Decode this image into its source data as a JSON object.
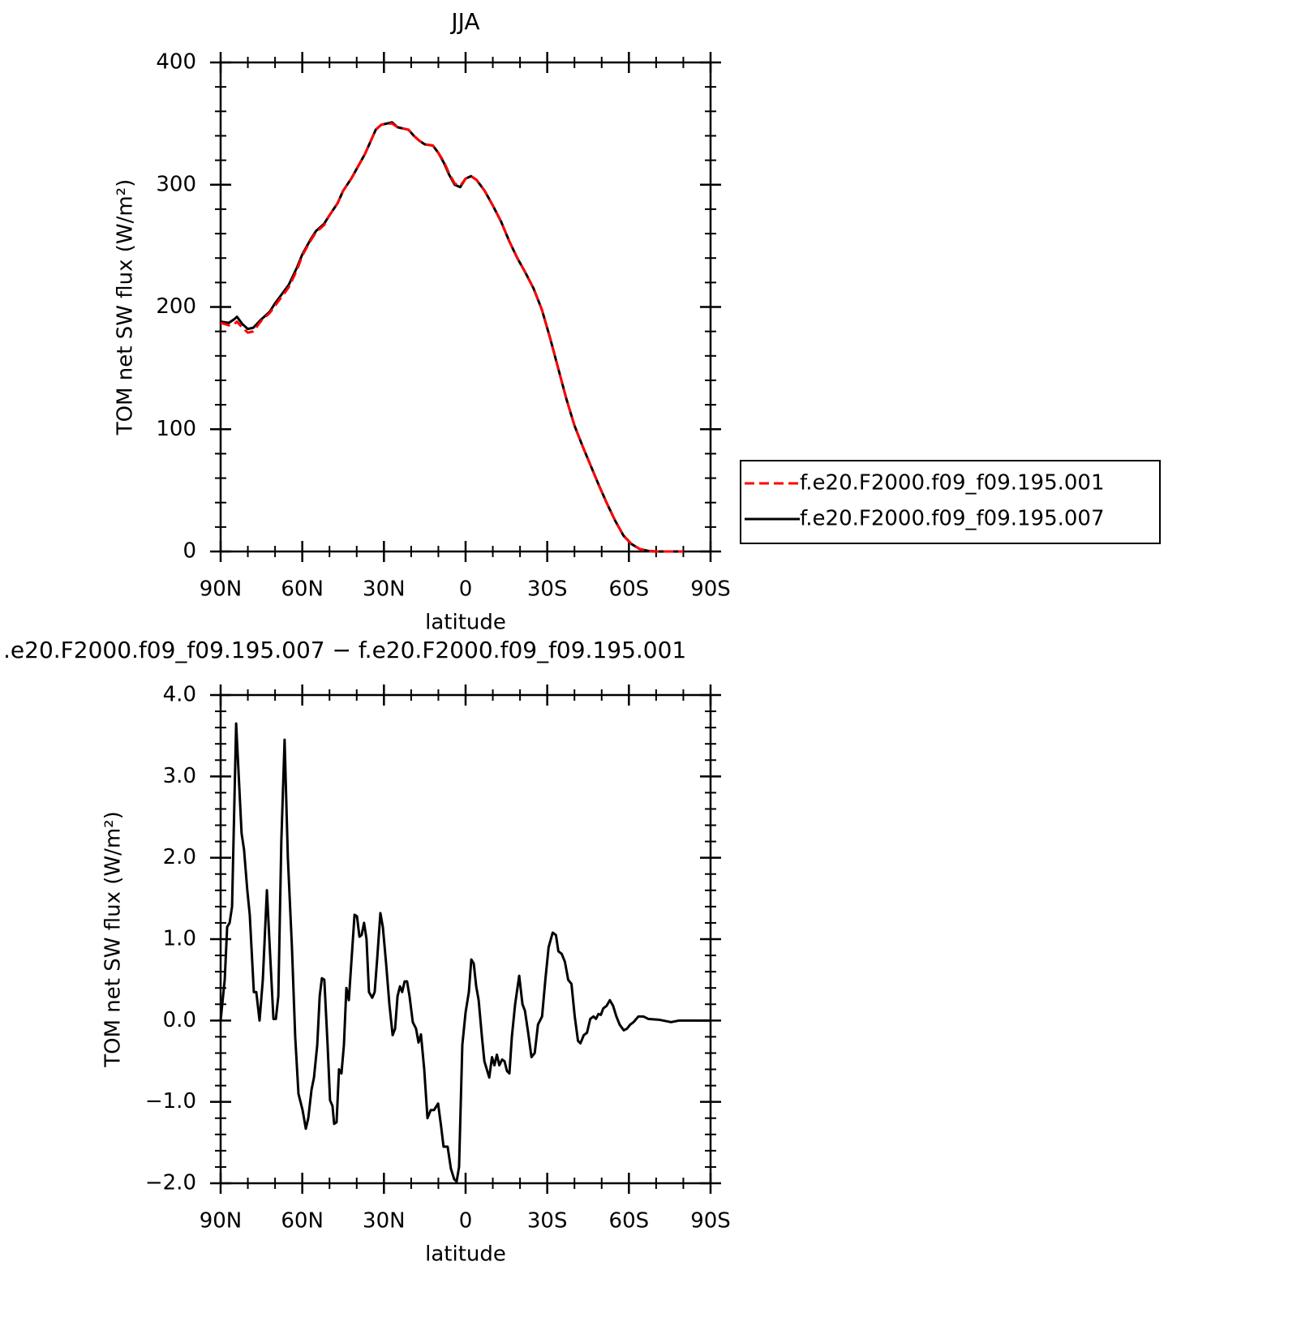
{
  "chart_data": [
    {
      "type": "line",
      "title": "JJA",
      "xlabel": "latitude",
      "ylabel": "TOM net SW flux (W/m²)",
      "x": [
        90,
        87,
        85,
        84,
        82,
        80,
        78,
        75,
        72,
        70,
        67,
        65,
        62,
        60,
        57,
        55,
        52,
        50,
        47,
        45,
        42,
        40,
        37,
        35,
        33,
        31,
        29,
        27,
        25,
        23,
        21,
        19,
        17,
        15,
        12,
        10,
        8,
        6,
        4,
        2,
        0,
        -2,
        -4,
        -7,
        -10,
        -13,
        -16,
        -19,
        -22,
        -25,
        -28,
        -31,
        -34,
        -37,
        -40,
        -43,
        -46,
        -49,
        -52,
        -55,
        -58,
        -61,
        -64,
        -67,
        -70,
        -75,
        -80
      ],
      "xlim": [
        90,
        -90
      ],
      "xticks": [
        {
          "value": 90,
          "label": "90N"
        },
        {
          "value": 60,
          "label": "60N"
        },
        {
          "value": 30,
          "label": "30N"
        },
        0,
        {
          "value": -30,
          "label": "30S"
        },
        {
          "value": -60,
          "label": "60S"
        },
        {
          "value": -90,
          "label": "90S"
        }
      ],
      "ylim": [
        0,
        400
      ],
      "yticks": [
        0,
        100,
        200,
        300,
        400
      ],
      "legend": "right",
      "series": [
        {
          "name": "f.e20.F2000.f09_f09.195.007",
          "color": "#000000",
          "values": [
            188,
            187,
            190,
            192,
            186,
            182,
            183,
            190,
            196,
            203,
            212,
            218,
            232,
            243,
            255,
            262,
            268,
            275,
            285,
            295,
            305,
            313,
            325,
            335,
            345,
            349,
            350,
            351,
            347,
            346,
            345,
            340,
            336,
            333,
            332,
            326,
            318,
            308,
            300,
            298,
            305,
            307,
            304,
            295,
            283,
            270,
            254,
            240,
            228,
            215,
            198,
            175,
            150,
            125,
            103,
            86,
            70,
            54,
            39,
            25,
            13,
            6,
            2,
            0.5,
            0,
            0,
            0
          ]
        },
        {
          "name": "f.e20.F2000.f09_f09.195.001",
          "color": "#ff0000",
          "dash": "dashed",
          "values": [
            187,
            185,
            186,
            188,
            183,
            179,
            180,
            189,
            195,
            201,
            210,
            216,
            230,
            242,
            254,
            261,
            267,
            275,
            285,
            295,
            305,
            313,
            325,
            335,
            345,
            349,
            350,
            350,
            347,
            346,
            345,
            340,
            336,
            333,
            332,
            326,
            319,
            309,
            301,
            299,
            305,
            307,
            304,
            295,
            283,
            270,
            254,
            240,
            228,
            215,
            198,
            175,
            150,
            125,
            103,
            86,
            70,
            54,
            39,
            25,
            13,
            6,
            2,
            0.5,
            0,
            0,
            0
          ]
        }
      ]
    },
    {
      "type": "line",
      "title": ".e20.F2000.f09_f09.195.007 − f.e20.F2000.f09_f09.195.001",
      "xlabel": "latitude",
      "ylabel": "TOM net SW flux (W/m²)",
      "x": [
        90,
        88.5,
        87.6,
        86.7,
        85.8,
        84.3,
        82.3,
        81.4,
        80.2,
        79.3,
        77.8,
        76.9,
        75.7,
        74.5,
        73.0,
        71.8,
        70.6,
        69.7,
        68.8,
        67.7,
        66.5,
        65.3,
        63.8,
        62.6,
        61.4,
        59.9,
        58.7,
        57.8,
        56.6,
        55.7,
        54.5,
        53.6,
        52.8,
        51.9,
        50.7,
        49.8,
        48.9,
        48.3,
        47.4,
        46.5,
        45.6,
        44.7,
        43.8,
        42.9,
        40.8,
        39.9,
        39.0,
        38.2,
        37.3,
        36.4,
        35.5,
        34.3,
        33.4,
        32.5,
        31.3,
        30.4,
        29.2,
        28.0,
        26.8,
        25.9,
        25.0,
        24.1,
        23.3,
        22.4,
        21.5,
        20.6,
        19.4,
        18.2,
        17.3,
        16.4,
        15.2,
        14.0,
        12.8,
        11.6,
        10.1,
        9.0,
        8.1,
        6.6,
        5.4,
        4.2,
        3.3,
        2.4,
        1.2,
        0,
        -1.2,
        -2.1,
        -3.0,
        -3.9,
        -4.8,
        -6.0,
        -6.9,
        -7.8,
        -8.7,
        -9.7,
        -10.6,
        -11.5,
        -12.4,
        -13.4,
        -14.3,
        -15.2,
        -16.1,
        -17.0,
        -18.2,
        -19.7,
        -20.9,
        -21.8,
        -23.0,
        -24.2,
        -25.4,
        -26.6,
        -28.1,
        -29.3,
        -30.5,
        -32.0,
        -33.2,
        -34.1,
        -35.3,
        -36.5,
        -37.7,
        -38.9,
        -40.1,
        -41.3,
        -42.2,
        -43.4,
        -44.6,
        -45.8,
        -47.0,
        -47.9,
        -48.8,
        -49.7,
        -50.6,
        -51.8,
        -53.0,
        -54.2,
        -55.4,
        -56.6,
        -58.1,
        -59.3,
        -60.5,
        -61.7,
        -63.5,
        -65.3,
        -67.1,
        -71.0,
        -75.5,
        -78.5,
        -90
      ],
      "xlim": [
        90,
        -90
      ],
      "xticks": [
        {
          "value": 90,
          "label": "90N"
        },
        {
          "value": 60,
          "label": "60N"
        },
        {
          "value": 30,
          "label": "30N"
        },
        0,
        {
          "value": -30,
          "label": "30S"
        },
        {
          "value": -60,
          "label": "60S"
        },
        {
          "value": -90,
          "label": "90S"
        }
      ],
      "ylim": [
        -2,
        4
      ],
      "yticks": [
        {
          "value": -2,
          "label": "−2.0"
        },
        {
          "value": -1,
          "label": "−1.0"
        },
        {
          "value": 0,
          "label": "0.0"
        },
        {
          "value": 1,
          "label": "1.0"
        },
        {
          "value": 2,
          "label": "2.0"
        },
        {
          "value": 3,
          "label": "3.0"
        },
        {
          "value": 4,
          "label": "4.0"
        }
      ],
      "series": [
        {
          "color": "#000000",
          "values": [
            0,
            0.5,
            1.15,
            1.2,
            1.4,
            3.65,
            2.3,
            2.1,
            1.6,
            1.3,
            0.35,
            0.35,
            0.0,
            0.5,
            1.6,
            0.8,
            0.02,
            0.02,
            0.3,
            2.2,
            3.45,
            2.0,
            0.9,
            -0.2,
            -0.9,
            -1.1,
            -1.33,
            -1.2,
            -0.85,
            -0.7,
            -0.3,
            0.3,
            0.52,
            0.5,
            -0.3,
            -0.98,
            -1.05,
            -1.27,
            -1.25,
            -0.6,
            -0.65,
            -0.3,
            0.4,
            0.25,
            1.3,
            1.28,
            1.03,
            1.05,
            1.2,
            1.0,
            0.35,
            0.28,
            0.35,
            0.75,
            1.32,
            1.15,
            0.7,
            0.2,
            -0.18,
            -0.1,
            0.3,
            0.42,
            0.35,
            0.48,
            0.48,
            0.3,
            -0.02,
            -0.1,
            -0.27,
            -0.17,
            -0.6,
            -1.2,
            -1.1,
            -1.1,
            -1.02,
            -1.3,
            -1.55,
            -1.55,
            -1.82,
            -1.95,
            -1.98,
            -1.8,
            -0.3,
            0.1,
            0.35,
            0.75,
            0.7,
            0.42,
            0.25,
            -0.2,
            -0.5,
            -0.6,
            -0.7,
            -0.45,
            -0.55,
            -0.42,
            -0.55,
            -0.48,
            -0.5,
            -0.62,
            -0.65,
            -0.2,
            0.2,
            0.55,
            0.2,
            0.12,
            -0.15,
            -0.45,
            -0.4,
            -0.05,
            0.05,
            0.5,
            0.9,
            1.08,
            1.05,
            0.85,
            0.82,
            0.72,
            0.5,
            0.45,
            0.05,
            -0.25,
            -0.28,
            -0.18,
            -0.15,
            0.02,
            0.05,
            0.02,
            0.08,
            0.07,
            0.15,
            0.18,
            0.25,
            0.18,
            0.05,
            -0.05,
            -0.12,
            -0.1,
            -0.05,
            -0.02,
            0.05,
            0.05,
            0.02,
            0.01,
            -0.02,
            0,
            0
          ]
        }
      ]
    }
  ]
}
